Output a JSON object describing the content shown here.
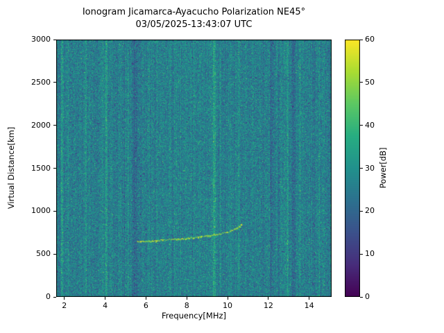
{
  "chart_data": {
    "type": "heatmap",
    "title": "Ionogram Jicamarca-Ayacucho Polarization NE45°",
    "subtitle": "03/05/2025-13:43:07 UTC",
    "xlabel": "Frequency[MHz]",
    "ylabel": "Virtual Distance[km]",
    "xlim": [
      1.6,
      15.1
    ],
    "ylim": [
      0,
      3000
    ],
    "xticks": [
      2,
      4,
      6,
      8,
      10,
      12,
      14
    ],
    "yticks": [
      0,
      500,
      1000,
      1500,
      2000,
      2500,
      3000
    ],
    "grid": false,
    "colorbar": {
      "label": "Power[dB]",
      "range": [
        0,
        60
      ],
      "ticks": [
        0,
        10,
        20,
        30,
        40,
        50,
        60
      ],
      "colormap": "viridis",
      "stops": [
        [
          0.0,
          "#440154"
        ],
        [
          0.125,
          "#472d7b"
        ],
        [
          0.25,
          "#3b518b"
        ],
        [
          0.375,
          "#2c718e"
        ],
        [
          0.5,
          "#21918c"
        ],
        [
          0.625,
          "#27ad81"
        ],
        [
          0.75,
          "#5cc863"
        ],
        [
          0.875,
          "#aadc32"
        ],
        [
          1.0,
          "#fde725"
        ]
      ]
    },
    "background_noise": {
      "mean_db": 26,
      "std_db": 5.5,
      "column_variation_db": 1.5
    },
    "rfi_vertical_lines": [
      {
        "freq_mhz": 1.9,
        "delta_db": 9,
        "width_mhz": 0.1
      },
      {
        "freq_mhz": 2.2,
        "delta_db": 4,
        "width_mhz": 0.07
      },
      {
        "freq_mhz": 3.05,
        "delta_db": 4,
        "width_mhz": 0.08
      },
      {
        "freq_mhz": 4.05,
        "delta_db": 11,
        "width_mhz": 0.12
      },
      {
        "freq_mhz": 5.15,
        "delta_db": 3,
        "width_mhz": 0.06
      },
      {
        "freq_mhz": 5.45,
        "delta_db": -7,
        "width_mhz": 0.28
      },
      {
        "freq_mhz": 5.75,
        "delta_db": -4,
        "width_mhz": 0.1
      },
      {
        "freq_mhz": 6.55,
        "delta_db": 4,
        "width_mhz": 0.07
      },
      {
        "freq_mhz": 8.3,
        "delta_db": -3,
        "width_mhz": 0.08
      },
      {
        "freq_mhz": 9.35,
        "delta_db": 11,
        "width_mhz": 0.14
      },
      {
        "freq_mhz": 9.65,
        "delta_db": 5,
        "width_mhz": 0.07
      },
      {
        "freq_mhz": 10.55,
        "delta_db": 6,
        "width_mhz": 0.09
      },
      {
        "freq_mhz": 11.05,
        "delta_db": -3,
        "width_mhz": 0.1
      },
      {
        "freq_mhz": 12.15,
        "delta_db": -6,
        "width_mhz": 0.18
      },
      {
        "freq_mhz": 12.5,
        "delta_db": -5,
        "width_mhz": 0.1
      },
      {
        "freq_mhz": 12.95,
        "delta_db": 8,
        "width_mhz": 0.1
      },
      {
        "freq_mhz": 13.25,
        "delta_db": -6,
        "width_mhz": 0.22
      },
      {
        "freq_mhz": 13.55,
        "delta_db": 5,
        "width_mhz": 0.08
      },
      {
        "freq_mhz": 13.8,
        "delta_db": -4,
        "width_mhz": 0.1
      },
      {
        "freq_mhz": 14.5,
        "delta_db": 4,
        "width_mhz": 0.07
      }
    ],
    "echo_trace": {
      "power_db": 52,
      "points_mhz_km": [
        [
          5.55,
          645
        ],
        [
          6.0,
          650
        ],
        [
          6.5,
          658
        ],
        [
          7.0,
          667
        ],
        [
          7.5,
          677
        ],
        [
          8.0,
          688
        ],
        [
          8.5,
          700
        ],
        [
          9.0,
          714
        ],
        [
          9.4,
          728
        ],
        [
          9.8,
          748
        ],
        [
          10.1,
          768
        ],
        [
          10.35,
          792
        ],
        [
          10.55,
          825
        ],
        [
          10.68,
          862
        ]
      ]
    }
  }
}
